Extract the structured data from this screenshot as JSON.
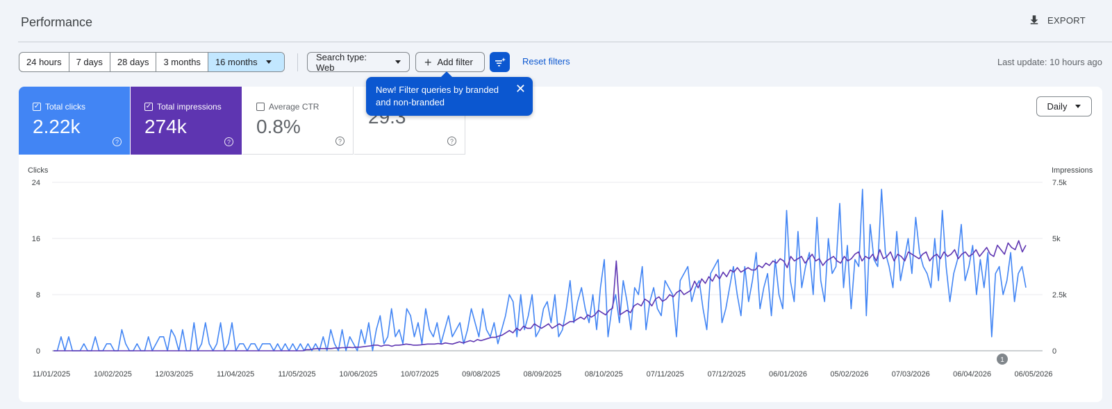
{
  "page": {
    "title": "Performance",
    "export_label": "EXPORT"
  },
  "toolbar": {
    "ranges": [
      "24 hours",
      "7 days",
      "28 days",
      "3 months",
      "16 months"
    ],
    "selected_range": "16 months",
    "search_type": "Search type: Web",
    "add_filter": "Add filter",
    "reset_filters": "Reset filters",
    "last_update": "Last update: 10 hours ago"
  },
  "metrics": {
    "clicks": {
      "label": "Total clicks",
      "value": "2.22k",
      "checked": true
    },
    "impressions": {
      "label": "Total impressions",
      "value": "274k",
      "checked": true
    },
    "ctr": {
      "label": "Average CTR",
      "value": "0.8%",
      "checked": false
    },
    "position": {
      "label": "",
      "value": "29.3"
    }
  },
  "tooltip": {
    "text": "New! Filter queries by branded and non-branded",
    "close": "✕"
  },
  "granularity": {
    "label": "Daily"
  },
  "colors": {
    "clicks": "#4285f4",
    "impressions": "#5e35b1",
    "accent": "#0b57d0"
  },
  "chart_data": {
    "type": "line",
    "y_left_label": "Clicks",
    "y_right_label": "Impressions",
    "y_left_ticks": [
      "0",
      "8",
      "16",
      "24"
    ],
    "y_right_ticks": [
      "0",
      "2.5k",
      "5k",
      "7.5k"
    ],
    "y_left_range": [
      0,
      24
    ],
    "y_right_range": [
      0,
      7500
    ],
    "x_ticks": [
      "11/01/2025",
      "10/02/2025",
      "12/03/2025",
      "11/04/2025",
      "11/05/2025",
      "10/06/2025",
      "10/07/2025",
      "09/08/2025",
      "08/09/2025",
      "08/10/2025",
      "07/11/2025",
      "07/12/2025",
      "06/01/2026",
      "05/02/2026",
      "07/03/2026",
      "06/04/2026",
      "06/05/2026"
    ],
    "annotation": "1",
    "series": [
      {
        "name": "Clicks",
        "axis": "left",
        "values": [
          0,
          0,
          2,
          0,
          2,
          0,
          0,
          0,
          1,
          0,
          0,
          2,
          0,
          0,
          1,
          1,
          0,
          0,
          3,
          1,
          0,
          0,
          1,
          0,
          0,
          2,
          0,
          1,
          2,
          2,
          0,
          3,
          2,
          0,
          3,
          0,
          0,
          4,
          0,
          1,
          4,
          1,
          0,
          1,
          4,
          0,
          1,
          4,
          0,
          1,
          1,
          0,
          1,
          1,
          0,
          1,
          1,
          1,
          0,
          1,
          0,
          1,
          0,
          1,
          0,
          1,
          0,
          1,
          0,
          1,
          0,
          2,
          0,
          3,
          1,
          0,
          3,
          0,
          2,
          1,
          0,
          3,
          1,
          4,
          0,
          3,
          5,
          1,
          2,
          6,
          2,
          3,
          1,
          6,
          5,
          2,
          4,
          1,
          6,
          3,
          2,
          4,
          1,
          3,
          5,
          2,
          3,
          4,
          1,
          3,
          6,
          4,
          2,
          6,
          3,
          2,
          4,
          1,
          3,
          5,
          8,
          7,
          2,
          8,
          3,
          5,
          8,
          2,
          3,
          6,
          7,
          4,
          8,
          2,
          3,
          6,
          10,
          4,
          7,
          9,
          6,
          4,
          8,
          3,
          9,
          13,
          2,
          6,
          8,
          4,
          10,
          7,
          3,
          9,
          8,
          12,
          3,
          7,
          9,
          6,
          5,
          10,
          9,
          8,
          2,
          10,
          11,
          12,
          7,
          9,
          10,
          6,
          3,
          11,
          12,
          13,
          4,
          6,
          9,
          12,
          8,
          5,
          12,
          7,
          10,
          14,
          6,
          9,
          11,
          5,
          13,
          8,
          6,
          20,
          10,
          7,
          17,
          9,
          12,
          14,
          8,
          19,
          10,
          7,
          16,
          11,
          12,
          21,
          9,
          15,
          6,
          13,
          12,
          23,
          5,
          18,
          13,
          12,
          23,
          14,
          12,
          9,
          17,
          10,
          13,
          16,
          11,
          19,
          14,
          12,
          11,
          9,
          16,
          10,
          20,
          12,
          7,
          11,
          13,
          18,
          10,
          12,
          15,
          8,
          13,
          9,
          14,
          2,
          11,
          12,
          8,
          10,
          14,
          7,
          11,
          12,
          9
        ]
      },
      {
        "name": "Impressions",
        "axis": "right",
        "values": [
          0,
          0,
          0,
          0,
          0,
          0,
          0,
          0,
          0,
          0,
          0,
          0,
          0,
          0,
          0,
          0,
          0,
          0,
          0,
          0,
          0,
          0,
          0,
          0,
          0,
          0,
          0,
          0,
          0,
          0,
          0,
          0,
          0,
          0,
          0,
          0,
          0,
          0,
          0,
          0,
          0,
          0,
          0,
          0,
          0,
          0,
          0,
          0,
          0,
          0,
          0,
          0,
          0,
          0,
          0,
          0,
          0,
          0,
          0,
          0,
          0,
          0,
          0,
          0,
          0,
          0,
          0,
          0,
          0,
          0,
          0,
          50,
          50,
          80,
          100,
          100,
          100,
          100,
          100,
          120,
          120,
          140,
          140,
          150,
          140,
          160,
          160,
          180,
          200,
          220,
          250,
          250,
          200,
          250,
          250,
          200,
          250,
          250,
          270,
          300,
          280,
          250,
          250,
          260,
          280,
          300,
          300,
          300,
          320,
          300,
          350,
          320,
          300,
          350,
          400,
          350,
          400,
          450,
          400,
          500,
          450,
          500,
          550,
          600,
          600,
          650,
          700,
          800,
          900,
          800,
          1000,
          900,
          1100,
          1000,
          1000,
          1200,
          1100,
          1000,
          1100,
          1200,
          1000,
          1100,
          1200,
          1100,
          1200,
          1300,
          1300,
          1400,
          1500,
          1400,
          1600,
          1500,
          1600,
          1800,
          1700,
          1600,
          1800,
          1900,
          4000,
          1600,
          1700,
          1800,
          1700,
          2000,
          2100,
          2000,
          2300,
          2200,
          2000,
          2300,
          2400,
          2200,
          2300,
          2500,
          2400,
          2600,
          2700,
          2500,
          2600,
          2700,
          3100,
          2800,
          3200,
          3000,
          3300,
          3100,
          3400,
          3200,
          3500,
          3300,
          3600,
          3500,
          3700,
          3500,
          3600,
          3700,
          3600,
          3600,
          3800,
          3700,
          3900,
          3800,
          4000,
          3900,
          4100,
          4000,
          3700,
          4200,
          4000,
          4100,
          4200,
          3900,
          4100,
          4300,
          4000,
          4100,
          3800,
          4000,
          4100,
          4200,
          4000,
          3900,
          4200,
          4000,
          4100,
          4300,
          4400,
          4000,
          4200,
          4100,
          4300,
          4000,
          4500,
          4100,
          4200,
          4400,
          4000,
          4300,
          4200,
          4000,
          4400,
          4300,
          4200,
          4100,
          4300,
          4400,
          4000,
          4200,
          4300,
          4100,
          4400,
          4200,
          4300,
          4500,
          4100,
          4300,
          4400,
          4200,
          4300,
          4500,
          4200,
          4400,
          4600,
          4300,
          4200,
          4700,
          4500,
          4300,
          4800,
          4600,
          4500,
          4900,
          4400,
          4700
        ]
      }
    ]
  }
}
